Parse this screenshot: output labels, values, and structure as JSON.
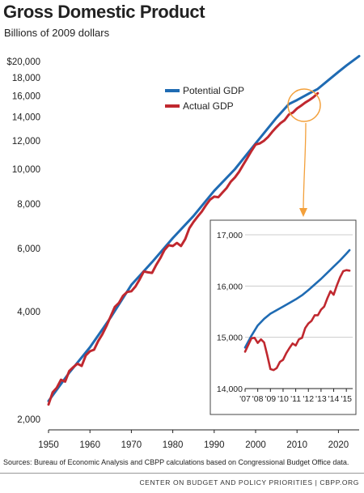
{
  "colors": {
    "potential": "#1f6bb3",
    "actual": "#c0282f",
    "callout": "#f3a03b",
    "grid": "#cccccc"
  },
  "chart_data": [
    {
      "type": "line",
      "title": "Gross Domestic Product",
      "subtitle": "Billions of 2009 dollars",
      "scale": "log",
      "grid": false,
      "legend_position": "top-center",
      "xlim": [
        1950,
        2025
      ],
      "ylim": [
        2000,
        21500
      ],
      "x_ticks": [
        1950,
        1960,
        1970,
        1980,
        1990,
        2000,
        2010,
        2020
      ],
      "y_ticks": [
        {
          "value": 2000,
          "label": "2,000"
        },
        {
          "value": 4000,
          "label": "4,000"
        },
        {
          "value": 6000,
          "label": "6,000"
        },
        {
          "value": 8000,
          "label": "8,000"
        },
        {
          "value": 10000,
          "label": "10,000"
        },
        {
          "value": 12000,
          "label": "12,000"
        },
        {
          "value": 14000,
          "label": "14,000"
        },
        {
          "value": 16000,
          "label": "16,000"
        },
        {
          "value": 18000,
          "label": "18,000"
        },
        {
          "value": 20000,
          "label": "$20,000"
        }
      ],
      "series": [
        {
          "name": "Potential GDP",
          "x": [
            1950,
            1955,
            1960,
            1965,
            1970,
            1975,
            1980,
            1985,
            1990,
            1995,
            2000,
            2005,
            2008,
            2010,
            2013,
            2015,
            2018,
            2020,
            2022,
            2025
          ],
          "y": [
            2250,
            2700,
            3180,
            3850,
            4750,
            5500,
            6420,
            7400,
            8700,
            10000,
            11800,
            13900,
            15200,
            15600,
            16300,
            16750,
            17900,
            18700,
            19500,
            20700
          ]
        },
        {
          "name": "Actual GDP",
          "x": [
            1950,
            1951,
            1952,
            1953,
            1954,
            1955,
            1956,
            1957,
            1958,
            1959,
            1960,
            1961,
            1962,
            1963,
            1964,
            1965,
            1966,
            1967,
            1968,
            1969,
            1970,
            1971,
            1972,
            1973,
            1974,
            1975,
            1976,
            1977,
            1978,
            1979,
            1980,
            1981,
            1982,
            1983,
            1984,
            1985,
            1986,
            1987,
            1988,
            1989,
            1990,
            1991,
            1992,
            1993,
            1994,
            1995,
            1996,
            1997,
            1998,
            1999,
            2000,
            2001,
            2002,
            2003,
            2004,
            2005,
            2006,
            2007,
            2008,
            2009,
            2010,
            2011,
            2012,
            2013,
            2014,
            2015
          ],
          "y": [
            2200,
            2380,
            2450,
            2580,
            2550,
            2730,
            2800,
            2860,
            2820,
            3020,
            3100,
            3130,
            3310,
            3460,
            3650,
            3880,
            4120,
            4230,
            4430,
            4540,
            4560,
            4700,
            4920,
            5180,
            5150,
            5130,
            5400,
            5640,
            5950,
            6130,
            6100,
            6220,
            6100,
            6380,
            6840,
            7120,
            7370,
            7610,
            7930,
            8220,
            8380,
            8350,
            8600,
            8860,
            9230,
            9480,
            9830,
            10280,
            10750,
            11250,
            11720,
            11800,
            12000,
            12300,
            12710,
            13090,
            13440,
            13700,
            14200,
            14400,
            14780,
            15050,
            15350,
            15610,
            15900,
            16300
          ]
        }
      ]
    },
    {
      "type": "line",
      "title": "",
      "grid": true,
      "xlim": [
        2007,
        2015.5
      ],
      "ylim": [
        14000,
        17000
      ],
      "x_ticks": [
        {
          "value": 2007,
          "label": "'07"
        },
        {
          "value": 2008,
          "label": "'08"
        },
        {
          "value": 2009,
          "label": "'09"
        },
        {
          "value": 2010,
          "label": "'10"
        },
        {
          "value": 2011,
          "label": "'11"
        },
        {
          "value": 2012,
          "label": "'12"
        },
        {
          "value": 2013,
          "label": "'13"
        },
        {
          "value": 2014,
          "label": "'14"
        },
        {
          "value": 2015,
          "label": "'15"
        }
      ],
      "y_ticks": [
        {
          "value": 14000,
          "label": "14,000"
        },
        {
          "value": 15000,
          "label": "15,000"
        },
        {
          "value": 16000,
          "label": "16,000"
        },
        {
          "value": 17000,
          "label": "17,000"
        }
      ],
      "series": [
        {
          "name": "Potential GDP",
          "x": [
            2007,
            2007.5,
            2008,
            2008.5,
            2009,
            2009.5,
            2010,
            2010.5,
            2011,
            2011.5,
            2012,
            2012.5,
            2013,
            2013.5,
            2014,
            2014.5,
            2015,
            2015.25
          ],
          "y": [
            14800,
            15030,
            15230,
            15360,
            15460,
            15530,
            15600,
            15670,
            15740,
            15820,
            15920,
            16030,
            16140,
            16260,
            16380,
            16500,
            16630,
            16700
          ]
        },
        {
          "name": "Actual GDP",
          "x": [
            2007,
            2007.25,
            2007.5,
            2007.75,
            2008,
            2008.25,
            2008.5,
            2008.75,
            2009,
            2009.25,
            2009.5,
            2009.75,
            2010,
            2010.25,
            2010.5,
            2010.75,
            2011,
            2011.25,
            2011.5,
            2011.75,
            2012,
            2012.25,
            2012.5,
            2012.75,
            2013,
            2013.25,
            2013.5,
            2013.75,
            2014,
            2014.25,
            2014.5,
            2014.75,
            2015,
            2015.25
          ],
          "y": [
            14720,
            14850,
            14980,
            14990,
            14890,
            14960,
            14900,
            14650,
            14380,
            14360,
            14400,
            14520,
            14560,
            14690,
            14790,
            14880,
            14840,
            14960,
            14990,
            15180,
            15270,
            15320,
            15430,
            15430,
            15540,
            15600,
            15760,
            15900,
            15830,
            16010,
            16170,
            16290,
            16310,
            16300
          ]
        }
      ]
    }
  ],
  "source": "Sources: Bureau of Economic Analysis and CBPP calculations based on Congressional Budget Office data.",
  "credit": "CENTER ON BUDGET AND POLICY PRIORITIES | CBPP.ORG"
}
